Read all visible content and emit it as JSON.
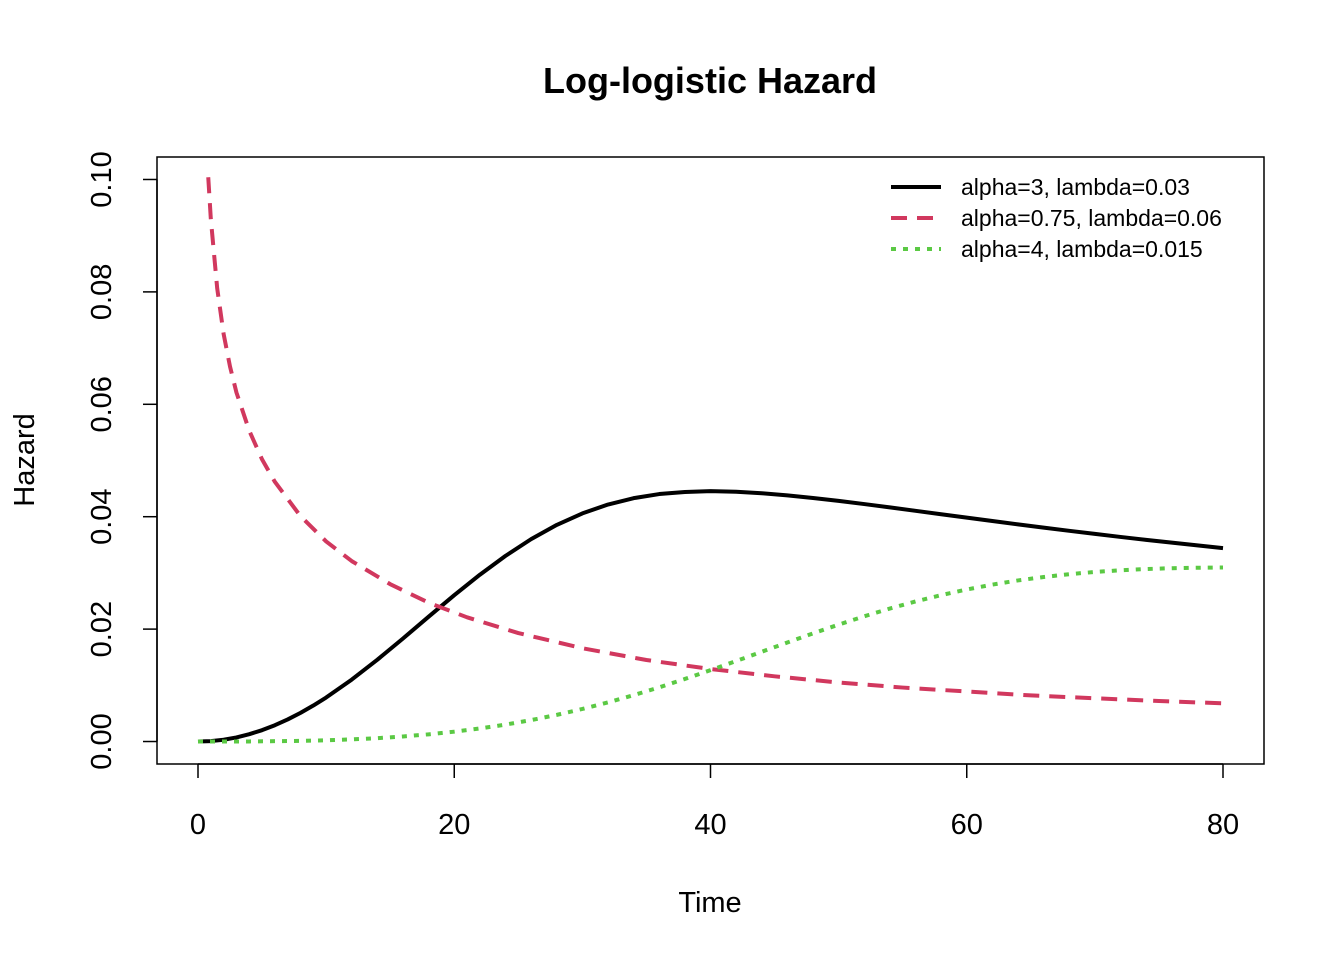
{
  "chart_data": {
    "type": "line",
    "title": "Log-logistic Hazard",
    "xlabel": "Time",
    "ylabel": "Hazard",
    "xlim": [
      -3.2,
      83.2
    ],
    "ylim": [
      -0.004,
      0.104
    ],
    "x_ticks": [
      0,
      20,
      40,
      60,
      80
    ],
    "x_tick_labels": [
      "0",
      "20",
      "40",
      "60",
      "80"
    ],
    "y_ticks": [
      0,
      0.02,
      0.04,
      0.06,
      0.08,
      0.1
    ],
    "y_tick_labels": [
      "0.00",
      "0.02",
      "0.04",
      "0.06",
      "0.08",
      "0.10"
    ],
    "grid": false,
    "legend_position": "top-right",
    "series": [
      {
        "name": "alpha=3, lambda=0.03",
        "color": "#000000",
        "line_style": "solid",
        "x": [
          0,
          1,
          2,
          3,
          4,
          5,
          6,
          7,
          8,
          9,
          10,
          12,
          14,
          16,
          18,
          20,
          22,
          24,
          26,
          28,
          30,
          32,
          34,
          36,
          38,
          40,
          42,
          44,
          46,
          48,
          50,
          52,
          54,
          56,
          58,
          60,
          62,
          64,
          66,
          68,
          70,
          72,
          74,
          76,
          78,
          80
        ],
        "y": [
          0.0,
          8e-05,
          0.00032,
          0.00073,
          0.0013,
          0.00202,
          0.0029,
          0.00393,
          0.0051,
          0.0064,
          0.00783,
          0.01102,
          0.01456,
          0.01833,
          0.02221,
          0.02604,
          0.02968,
          0.03303,
          0.03601,
          0.03854,
          0.04059,
          0.04217,
          0.0433,
          0.04403,
          0.0444,
          0.04455,
          0.04444,
          0.04417,
          0.0438,
          0.04333,
          0.04281,
          0.04225,
          0.04166,
          0.04105,
          0.04044,
          0.03983,
          0.03923,
          0.03864,
          0.03806,
          0.03749,
          0.03694,
          0.0364,
          0.03588,
          0.03538,
          0.03489,
          0.03441
        ]
      },
      {
        "name": "alpha=0.75, lambda=0.06",
        "color": "#d1385e",
        "line_style": "dashed",
        "x": [
          0.8,
          1,
          1.5,
          2,
          2.5,
          3,
          4,
          5,
          6,
          8,
          10,
          12,
          15,
          18,
          21,
          25,
          30,
          35,
          40,
          45,
          50,
          55,
          60,
          65,
          70,
          75,
          80
        ],
        "y": [
          0.1004,
          0.093,
          0.0806,
          0.0725,
          0.0667,
          0.0621,
          0.0553,
          0.0502,
          0.0462,
          0.0401,
          0.0356,
          0.0321,
          0.028,
          0.0247,
          0.0221,
          0.0193,
          0.0166,
          0.0145,
          0.0129,
          0.0116,
          0.0105,
          0.0096,
          0.0089,
          0.0082,
          0.0077,
          0.0072,
          0.0068
        ]
      },
      {
        "name": "alpha=4, lambda=0.015",
        "color": "#5bc944",
        "line_style": "dotted",
        "x": [
          0,
          4,
          8,
          10,
          12,
          14,
          16,
          18,
          20,
          22,
          24,
          26,
          28,
          30,
          32,
          34,
          36,
          38,
          40,
          42,
          44,
          46,
          48,
          50,
          52,
          54,
          56,
          58,
          60,
          62,
          64,
          66,
          68,
          70,
          72,
          74,
          76,
          78,
          80
        ],
        "y": [
          0.0,
          1.4e-05,
          0.00011,
          0.00022,
          0.00038,
          0.0006,
          0.0009,
          0.00128,
          0.00175,
          0.00232,
          0.00301,
          0.00381,
          0.00474,
          0.00579,
          0.00696,
          0.00825,
          0.00964,
          0.01113,
          0.0127,
          0.01432,
          0.01597,
          0.01762,
          0.01924,
          0.0208,
          0.02228,
          0.02366,
          0.02492,
          0.02605,
          0.02705,
          0.02792,
          0.02866,
          0.02927,
          0.02977,
          0.03017,
          0.03047,
          0.03069,
          0.03084,
          0.03092,
          0.03096
        ]
      }
    ]
  }
}
